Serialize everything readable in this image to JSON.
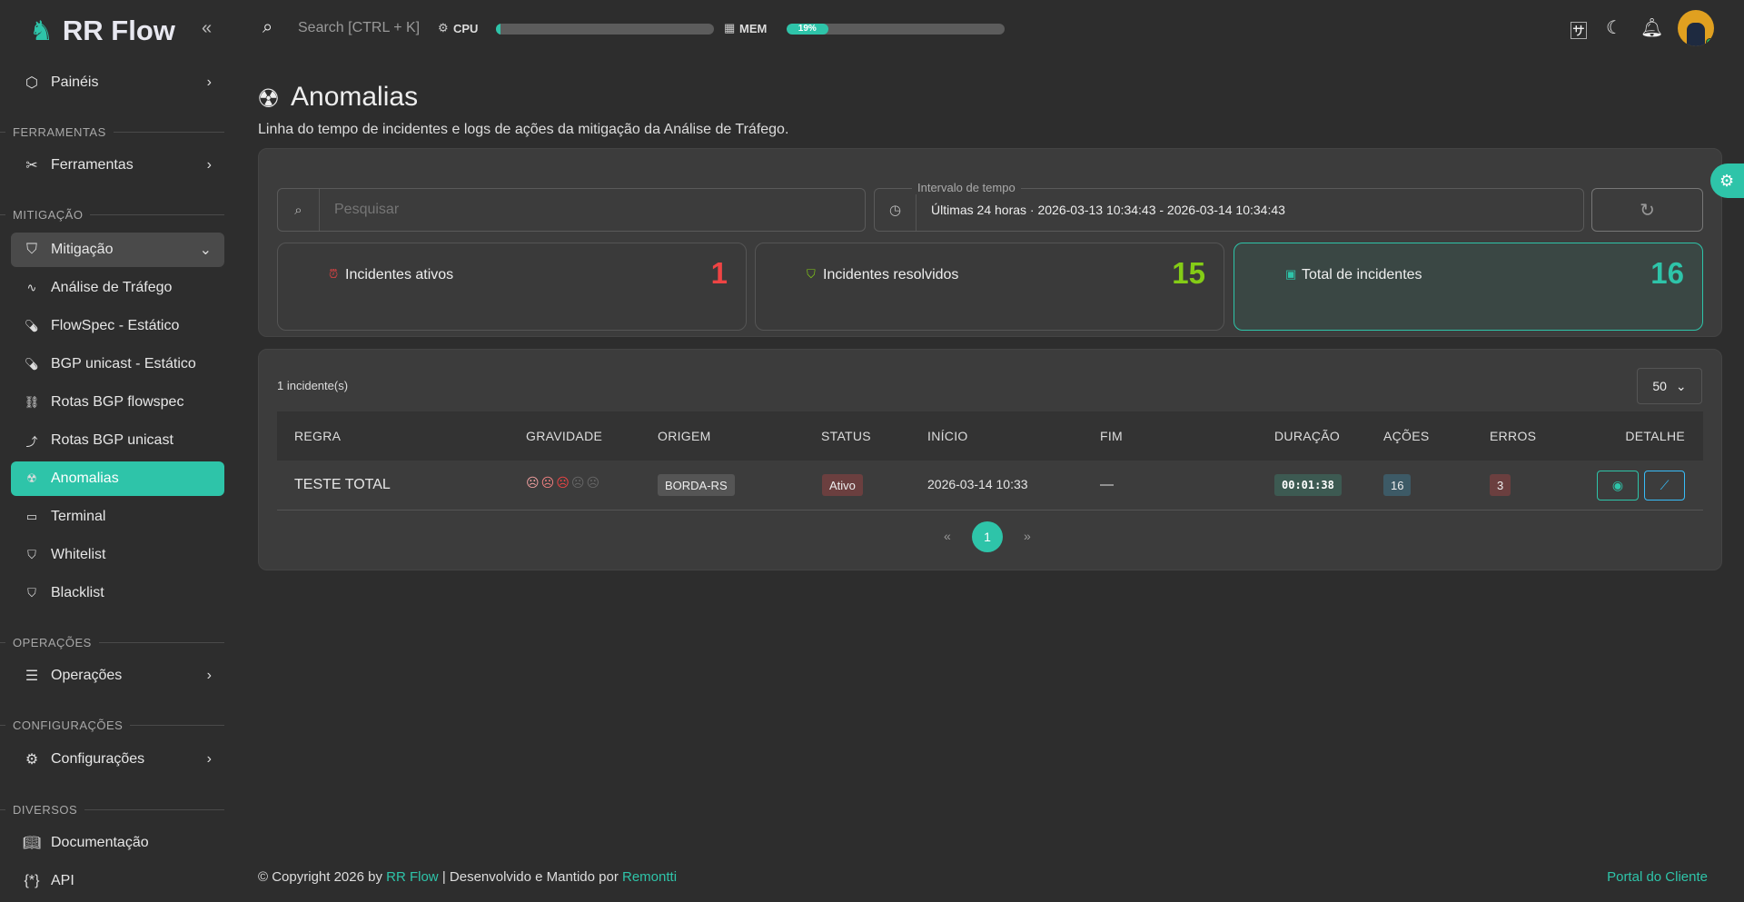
{
  "brand": {
    "name": "RR Flow"
  },
  "topbar": {
    "search_placeholder": "Search [CTRL + K]",
    "cpu_label": "CPU",
    "cpu_percent": 2,
    "mem_label": "MEM",
    "mem_percent": 19,
    "mem_text": "19%"
  },
  "sidebar": {
    "paineis": "Painéis",
    "sec_ferramentas": "FERRAMENTAS",
    "ferramentas": "Ferramentas",
    "sec_mitigacao": "MITIGAÇÃO",
    "mitigacao": "Mitigação",
    "sub": [
      {
        "label": "Análise de Tráfego",
        "icon": "pulse-icon"
      },
      {
        "label": "FlowSpec - Estático",
        "icon": "pill-icon"
      },
      {
        "label": "BGP unicast - Estático",
        "icon": "pill-icon"
      },
      {
        "label": "Rotas BGP flowspec",
        "icon": "sitemap-icon"
      },
      {
        "label": "Rotas BGP unicast",
        "icon": "route-icon"
      },
      {
        "label": "Anomalias",
        "icon": "radiation-icon",
        "active": true
      },
      {
        "label": "Terminal",
        "icon": "terminal-icon"
      },
      {
        "label": "Whitelist",
        "icon": "shield-check-icon"
      },
      {
        "label": "Blacklist",
        "icon": "shield-x-icon"
      }
    ],
    "sec_operacoes": "OPERAÇÕES",
    "operacoes": "Operações",
    "sec_config": "CONFIGURAÇÕES",
    "configuracoes": "Configurações",
    "sec_diversos": "DIVERSOS",
    "documentacao": "Documentação",
    "api": "API"
  },
  "page": {
    "title": "Anomalias",
    "subtitle": "Linha do tempo de incidentes e logs de ações da mitigação da Análise de Tráfego."
  },
  "filters": {
    "search_placeholder": "Pesquisar",
    "interval_label": "Intervalo de tempo",
    "interval_value": "Últimas 24 horas · 2026-03-13 10:34:43 - 2026-03-14 10:34:43"
  },
  "stats": [
    {
      "label": "Incidentes ativos",
      "value": "1",
      "color": "#ef4444"
    },
    {
      "label": "Incidentes resolvidos",
      "value": "15",
      "color": "#84cc16"
    },
    {
      "label": "Total de incidentes",
      "value": "16",
      "color": "#2ec4a9"
    }
  ],
  "table": {
    "count": "1 incidente(s)",
    "page_size": "50",
    "columns": [
      "REGRA",
      "GRAVIDADE",
      "ORIGEM",
      "STATUS",
      "INÍCIO",
      "FIM",
      "DURAÇÃO",
      "AÇÕES",
      "ERROS",
      "DETALHE"
    ],
    "rows": [
      {
        "regra": "TESTE TOTAL",
        "gravidade": 3,
        "gravidade_max": 5,
        "origem": "BORDA-RS",
        "status": "Ativo",
        "inicio": "2026-03-14 10:33",
        "fim": "—",
        "duracao": "00:01:38",
        "acoes": "16",
        "erros": "3"
      }
    ],
    "pagination": {
      "prev": "«",
      "current": "1",
      "next": "»"
    }
  },
  "footer": {
    "copyright": "© Copyright 2026 by ",
    "brand": "RR Flow",
    "mid": " | Desenvolvido e Mantido por ",
    "dev": "Remontti",
    "portal": "Portal do Cliente"
  },
  "colors": {
    "accent": "#2ec4a9",
    "bg": "#2d2d2d",
    "card": "#3c3c3c"
  }
}
